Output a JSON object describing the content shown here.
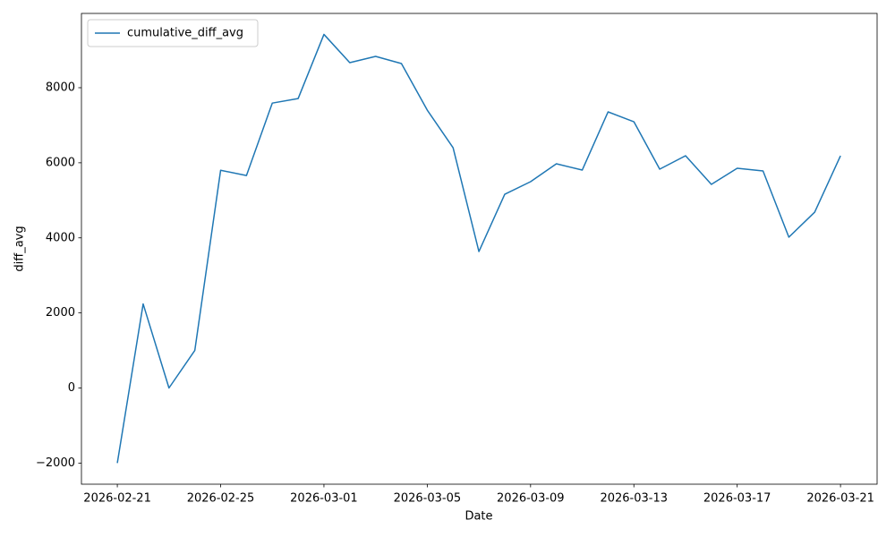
{
  "chart_data": {
    "type": "line",
    "x": [
      "2026-02-21",
      "2026-02-22",
      "2026-02-23",
      "2026-02-24",
      "2026-02-25",
      "2026-02-26",
      "2026-02-27",
      "2026-02-28",
      "2026-03-01",
      "2026-03-02",
      "2026-03-03",
      "2026-03-04",
      "2026-03-05",
      "2026-03-06",
      "2026-03-07",
      "2026-03-08",
      "2026-03-09",
      "2026-03-10",
      "2026-03-11",
      "2026-03-12",
      "2026-03-13",
      "2026-03-14",
      "2026-03-15",
      "2026-03-16",
      "2026-03-17",
      "2026-03-18",
      "2026-03-19",
      "2026-03-20",
      "2026-03-21"
    ],
    "series": [
      {
        "name": "cumulative_diff_avg",
        "color": "#1f77b4",
        "values": [
          -2000,
          2240,
          0,
          1000,
          5800,
          5660,
          7590,
          7710,
          9420,
          8667,
          8834,
          8643,
          7403,
          6402,
          3636,
          5162,
          5496,
          5973,
          5806,
          7356,
          7093,
          5830,
          6187,
          5424,
          5854,
          5782,
          4018,
          4685,
          6187
        ]
      }
    ],
    "xlabel": "Date",
    "ylabel": "diff_avg",
    "xlim": [
      "2026-02-19T14:40Z",
      "2026-03-22T10:00Z"
    ],
    "xticks": [
      "2026-02-21",
      "2026-02-25",
      "2026-03-01",
      "2026-03-05",
      "2026-03-09",
      "2026-03-13",
      "2026-03-17",
      "2026-03-21"
    ],
    "ylim": [
      -2563,
      9979
    ],
    "yticks": [
      {
        "value": -2000,
        "label": "−2000"
      },
      0,
      2000,
      4000,
      6000,
      8000
    ],
    "grid": false,
    "legend": "upper left"
  }
}
